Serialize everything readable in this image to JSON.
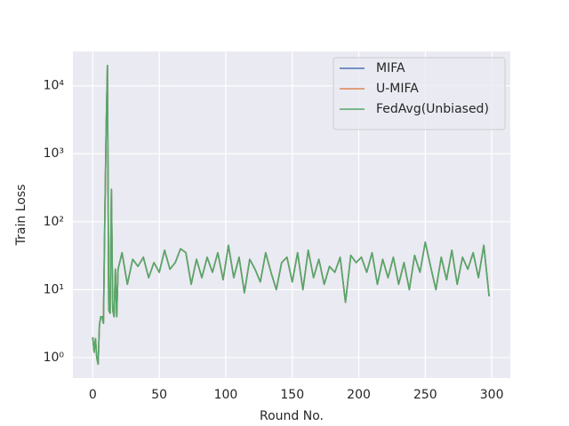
{
  "chart_data": {
    "type": "line",
    "xlabel": "Round No.",
    "ylabel": "Train Loss",
    "yscale": "log",
    "grid": true,
    "legend": "upper right",
    "x": [
      0,
      1,
      2,
      3,
      4,
      5,
      6,
      7,
      8,
      9,
      10,
      11,
      12,
      13,
      14,
      15,
      16,
      17,
      18,
      19,
      22,
      26,
      30,
      34,
      38,
      42,
      46,
      50,
      54,
      58,
      62,
      66,
      70,
      74,
      78,
      82,
      86,
      90,
      94,
      98,
      102,
      106,
      110,
      114,
      118,
      122,
      126,
      130,
      134,
      138,
      142,
      146,
      150,
      154,
      158,
      162,
      166,
      170,
      174,
      178,
      182,
      186,
      190,
      194,
      198,
      202,
      206,
      210,
      214,
      218,
      222,
      226,
      230,
      234,
      238,
      242,
      246,
      250,
      254,
      258,
      262,
      266,
      270,
      274,
      278,
      282,
      286,
      290,
      294,
      298
    ],
    "series": [
      {
        "name": "MIFA",
        "color": "#4c72b0",
        "values": [
          2,
          1.2,
          1.9,
          1.0,
          0.8,
          3,
          4,
          4,
          3.2,
          100,
          2000,
          20000,
          5,
          4.5,
          300,
          5,
          4,
          20,
          4,
          20,
          35,
          12,
          28,
          22,
          30,
          15,
          25,
          18,
          38,
          20,
          25,
          40,
          35,
          12,
          28,
          15,
          30,
          18,
          35,
          14,
          45,
          15,
          30,
          9,
          28,
          20,
          13,
          35,
          18,
          10,
          25,
          30,
          13,
          35,
          10,
          38,
          15,
          28,
          12,
          22,
          18,
          30,
          6.5,
          32,
          25,
          30,
          18,
          35,
          12,
          28,
          15,
          30,
          12,
          25,
          10,
          32,
          18,
          50,
          22,
          10,
          30,
          14,
          38,
          12,
          30,
          20,
          35,
          15,
          45,
          8
        ]
      },
      {
        "name": "U-MIFA",
        "color": "#dd8452",
        "values": [
          2,
          1.2,
          1.9,
          1.0,
          0.8,
          3,
          4,
          4,
          3.2,
          100,
          2000,
          20000,
          5,
          4.5,
          300,
          5,
          4,
          20,
          4,
          20,
          35,
          12,
          28,
          22,
          30,
          15,
          25,
          18,
          38,
          20,
          25,
          40,
          35,
          12,
          28,
          15,
          30,
          18,
          35,
          14,
          45,
          15,
          30,
          9,
          28,
          20,
          13,
          35,
          18,
          10,
          25,
          30,
          13,
          35,
          10,
          38,
          15,
          28,
          12,
          22,
          18,
          30,
          6.5,
          32,
          25,
          30,
          18,
          35,
          12,
          28,
          15,
          30,
          12,
          25,
          10,
          32,
          18,
          50,
          22,
          10,
          30,
          14,
          38,
          12,
          30,
          20,
          35,
          15,
          45,
          8
        ]
      },
      {
        "name": "FedAvg(Unbiased)",
        "color": "#55a868",
        "values": [
          2,
          1.2,
          1.9,
          1.0,
          0.8,
          3,
          4,
          4,
          3.2,
          100,
          2000,
          20000,
          5,
          4.5,
          300,
          5,
          4,
          20,
          4,
          20,
          35,
          12,
          28,
          22,
          30,
          15,
          25,
          18,
          38,
          20,
          25,
          40,
          35,
          12,
          28,
          15,
          30,
          18,
          35,
          14,
          45,
          15,
          30,
          9,
          28,
          20,
          13,
          35,
          18,
          10,
          25,
          30,
          13,
          35,
          10,
          38,
          15,
          28,
          12,
          22,
          18,
          30,
          6.5,
          32,
          25,
          30,
          18,
          35,
          12,
          28,
          15,
          30,
          12,
          25,
          10,
          32,
          18,
          50,
          22,
          10,
          30,
          14,
          38,
          12,
          30,
          20,
          35,
          15,
          45,
          8
        ]
      }
    ],
    "xlim": [
      -14.95,
      313.95
    ],
    "xticks": [
      0,
      50,
      100,
      150,
      200,
      250,
      300
    ],
    "ylim": [
      0.5,
      32000
    ],
    "yticks": [
      {
        "value": 1,
        "label": "10⁰"
      },
      {
        "value": 10,
        "label": "10¹"
      },
      {
        "value": 100,
        "label": "10²"
      },
      {
        "value": 1000,
        "label": "10³"
      },
      {
        "value": 10000,
        "label": "10⁴"
      }
    ]
  }
}
